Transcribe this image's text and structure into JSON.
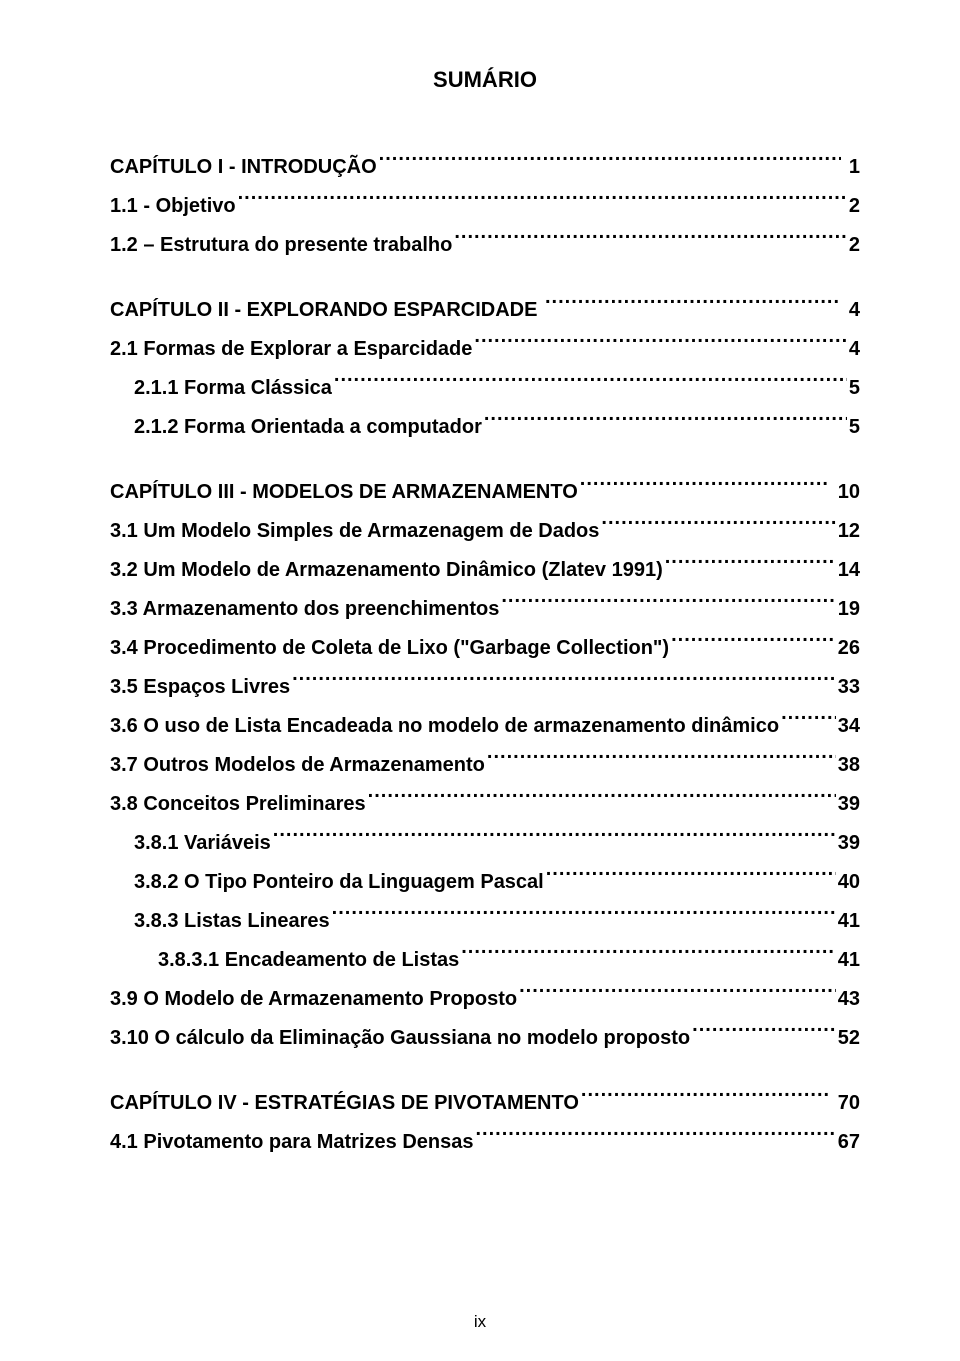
{
  "title": "SUMÁRIO",
  "page_number": "ix",
  "entries": [
    {
      "label": "CAPÍTULO I - INTRODUÇÃO",
      "page": " 1",
      "indent": 0,
      "section": true
    },
    {
      "label": "1.1 - Objetivo",
      "page": "2",
      "indent": 0
    },
    {
      "label": "1.2 – Estrutura do presente trabalho",
      "page": "2",
      "indent": 0
    },
    {
      "label": "CAPÍTULO II - EXPLORANDO ESPARCIDADE ",
      "page": " 4",
      "indent": 0,
      "section": true
    },
    {
      "label": "2.1 Formas de Explorar a Esparcidade",
      "page": "4",
      "indent": 0
    },
    {
      "label": "2.1.1 Forma Clássica",
      "page": "5",
      "indent": 1
    },
    {
      "label": "2.1.2 Forma Orientada a computador",
      "page": "5",
      "indent": 1
    },
    {
      "label": "CAPÍTULO III - MODELOS DE ARMAZENAMENTO",
      "page": " 10",
      "indent": 0,
      "section": true
    },
    {
      "label": "3.1 Um Modelo Simples de Armazenagem de Dados",
      "page": "12",
      "indent": 0
    },
    {
      "label": "3.2 Um Modelo de Armazenamento Dinâmico (Zlatev 1991)",
      "page": "14",
      "indent": 0
    },
    {
      "label": "3.3 Armazenamento dos preenchimentos",
      "page": "19",
      "indent": 0
    },
    {
      "label": "3.4 Procedimento de Coleta de Lixo (\"Garbage Collection\")",
      "page": "26",
      "indent": 0
    },
    {
      "label": "3.5 Espaços Livres",
      "page": "33",
      "indent": 0
    },
    {
      "label": "3.6 O uso de Lista Encadeada no modelo de armazenamento dinâmico",
      "page": "34",
      "indent": 0
    },
    {
      "label": "3.7 Outros Modelos de Armazenamento",
      "page": "38",
      "indent": 0
    },
    {
      "label": "3.8 Conceitos Preliminares",
      "page": "39",
      "indent": 0
    },
    {
      "label": "3.8.1 Variáveis",
      "page": "39",
      "indent": 1
    },
    {
      "label": "3.8.2 O Tipo Ponteiro da Linguagem Pascal",
      "page": "40",
      "indent": 1
    },
    {
      "label": "3.8.3 Listas Lineares",
      "page": "41",
      "indent": 1
    },
    {
      "label": "3.8.3.1 Encadeamento de Listas",
      "page": "41",
      "indent": 2
    },
    {
      "label": "3.9 O Modelo de Armazenamento Proposto",
      "page": "43",
      "indent": 0
    },
    {
      "label": "3.10 O cálculo da Eliminação Gaussiana no modelo proposto",
      "page": "52",
      "indent": 0
    },
    {
      "label": "CAPÍTULO IV - ESTRATÉGIAS DE PIVOTAMENTO",
      "page": " 70",
      "indent": 0,
      "section": true
    },
    {
      "label": "4.1 Pivotamento para Matrizes Densas",
      "page": "67",
      "indent": 0
    }
  ]
}
